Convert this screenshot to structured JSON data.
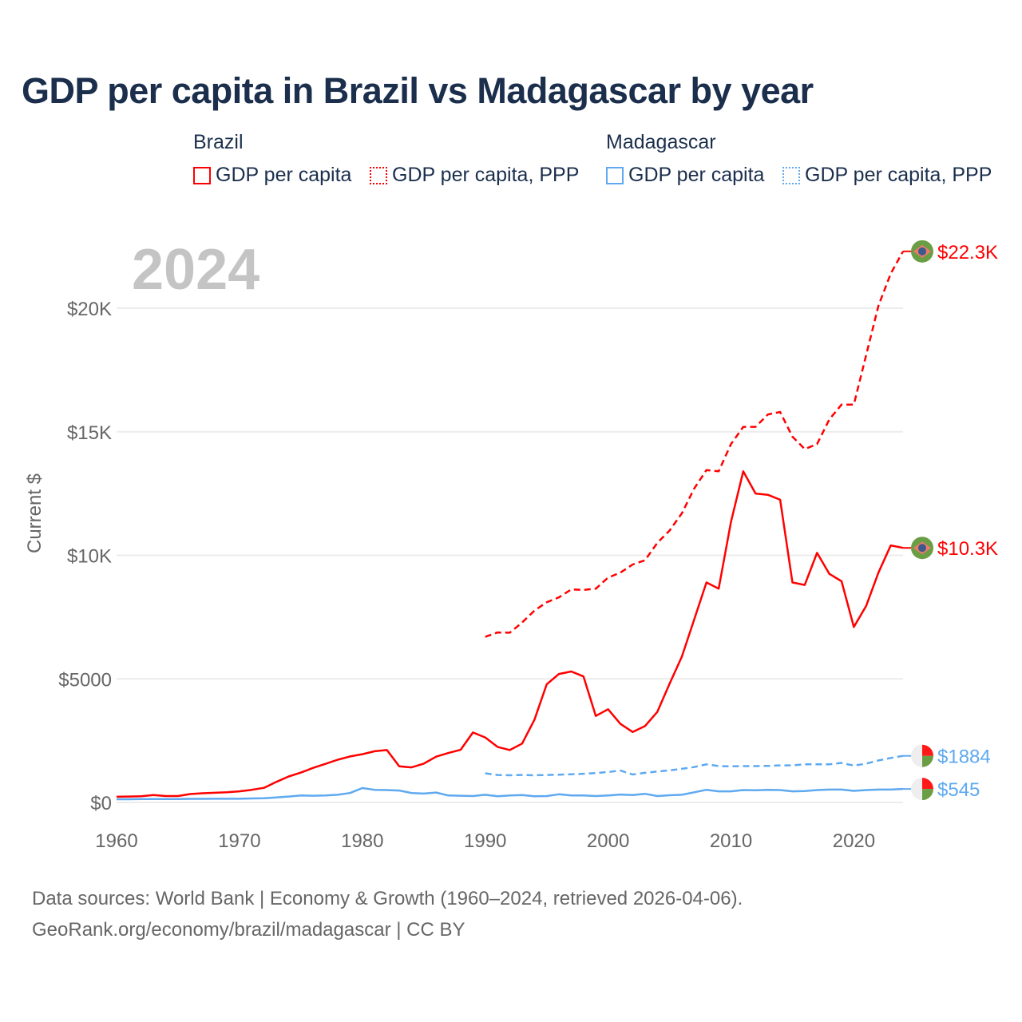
{
  "title": "GDP per capita in Brazil vs Madagascar by year",
  "legend": {
    "groups": [
      {
        "name": "Brazil",
        "items": [
          {
            "label": "GDP per capita",
            "style": "solid"
          },
          {
            "label": "GDP per capita, PPP",
            "style": "dotted"
          }
        ],
        "color": "#ff0000"
      },
      {
        "name": "Madagascar",
        "items": [
          {
            "label": "GDP per capita",
            "style": "solid"
          },
          {
            "label": "GDP per capita, PPP",
            "style": "dotted"
          }
        ],
        "color": "#5ea9f0"
      }
    ]
  },
  "footer": {
    "line1": "Data sources: World Bank | Economy & Growth (1960–2024, retrieved 2026-04-06).",
    "line2": "GeoRank.org/economy/brazil/madagascar | CC BY"
  },
  "chart_data": {
    "type": "line",
    "title": "GDP per capita in Brazil vs Madagascar by year",
    "year_label": "2024",
    "ylabel": "Current $",
    "xlabel": "",
    "xlim": [
      1960,
      2024
    ],
    "ylim": [
      0,
      22300
    ],
    "x_ticks": [
      "1960",
      "1970",
      "1980",
      "1990",
      "2000",
      "2010",
      "2020"
    ],
    "y_ticks": [
      {
        "value": 0,
        "label": "$0"
      },
      {
        "value": 5000,
        "label": "$5000"
      },
      {
        "value": 10000,
        "label": "$10K"
      },
      {
        "value": 15000,
        "label": "$15K"
      },
      {
        "value": 20000,
        "label": "$20K"
      }
    ],
    "grid": true,
    "series": [
      {
        "name": "Brazil GDP per capita",
        "color": "#ff0000",
        "dash": "solid",
        "start": 1960,
        "end_label": "$10.3K",
        "marker": "brazil-flag",
        "values": [
          230,
          240,
          250,
          300,
          260,
          260,
          340,
          370,
          390,
          410,
          450,
          510,
          590,
          830,
          1050,
          1210,
          1400,
          1560,
          1730,
          1860,
          1950,
          2070,
          2120,
          1460,
          1420,
          1570,
          1850,
          2000,
          2130,
          2830,
          2630,
          2250,
          2120,
          2380,
          3340,
          4780,
          5200,
          5300,
          5100,
          3500,
          3770,
          3180,
          2850,
          3090,
          3660,
          4800,
          5900,
          7400,
          8900,
          8650,
          11350,
          13400,
          12500,
          12450,
          12250,
          8900,
          8800,
          10100,
          9250,
          8950,
          7100,
          7950,
          9300,
          10400,
          10300
        ]
      },
      {
        "name": "Brazil GDP per capita, PPP",
        "color": "#ff0000",
        "dash": "dashed",
        "start": 1990,
        "end_label": "$22.3K",
        "marker": "brazil-flag",
        "values": [
          6700,
          6880,
          6870,
          7280,
          7760,
          8100,
          8300,
          8620,
          8600,
          8650,
          9100,
          9300,
          9630,
          9800,
          10500,
          11000,
          11700,
          12700,
          13450,
          13400,
          14500,
          15200,
          15200,
          15700,
          15800,
          14800,
          14300,
          14500,
          15500,
          16100,
          16100,
          18100,
          20100,
          21400,
          22300
        ]
      },
      {
        "name": "Madagascar GDP per capita",
        "color": "#5ea9f0",
        "dash": "solid",
        "start": 1960,
        "end_label": "$545",
        "marker": "madagascar-flag",
        "values": [
          130,
          130,
          135,
          135,
          140,
          140,
          145,
          145,
          150,
          150,
          150,
          160,
          170,
          200,
          240,
          280,
          270,
          280,
          310,
          380,
          580,
          510,
          500,
          480,
          380,
          360,
          400,
          280,
          270,
          260,
          310,
          250,
          280,
          300,
          250,
          260,
          330,
          280,
          280,
          260,
          280,
          320,
          300,
          350,
          260,
          290,
          310,
          410,
          510,
          450,
          450,
          500,
          490,
          510,
          500,
          450,
          460,
          500,
          520,
          520,
          470,
          500,
          520,
          520,
          545
        ]
      },
      {
        "name": "Madagascar GDP per capita, PPP",
        "color": "#5ea9f0",
        "dash": "dashed",
        "start": 1990,
        "end_label": "$1884",
        "marker": "madagascar-flag",
        "values": [
          1180,
          1110,
          1100,
          1110,
          1100,
          1110,
          1120,
          1140,
          1160,
          1190,
          1230,
          1290,
          1130,
          1200,
          1250,
          1300,
          1360,
          1430,
          1540,
          1470,
          1460,
          1470,
          1470,
          1480,
          1500,
          1500,
          1540,
          1540,
          1540,
          1600,
          1490,
          1570,
          1700,
          1800,
          1884
        ]
      }
    ]
  }
}
